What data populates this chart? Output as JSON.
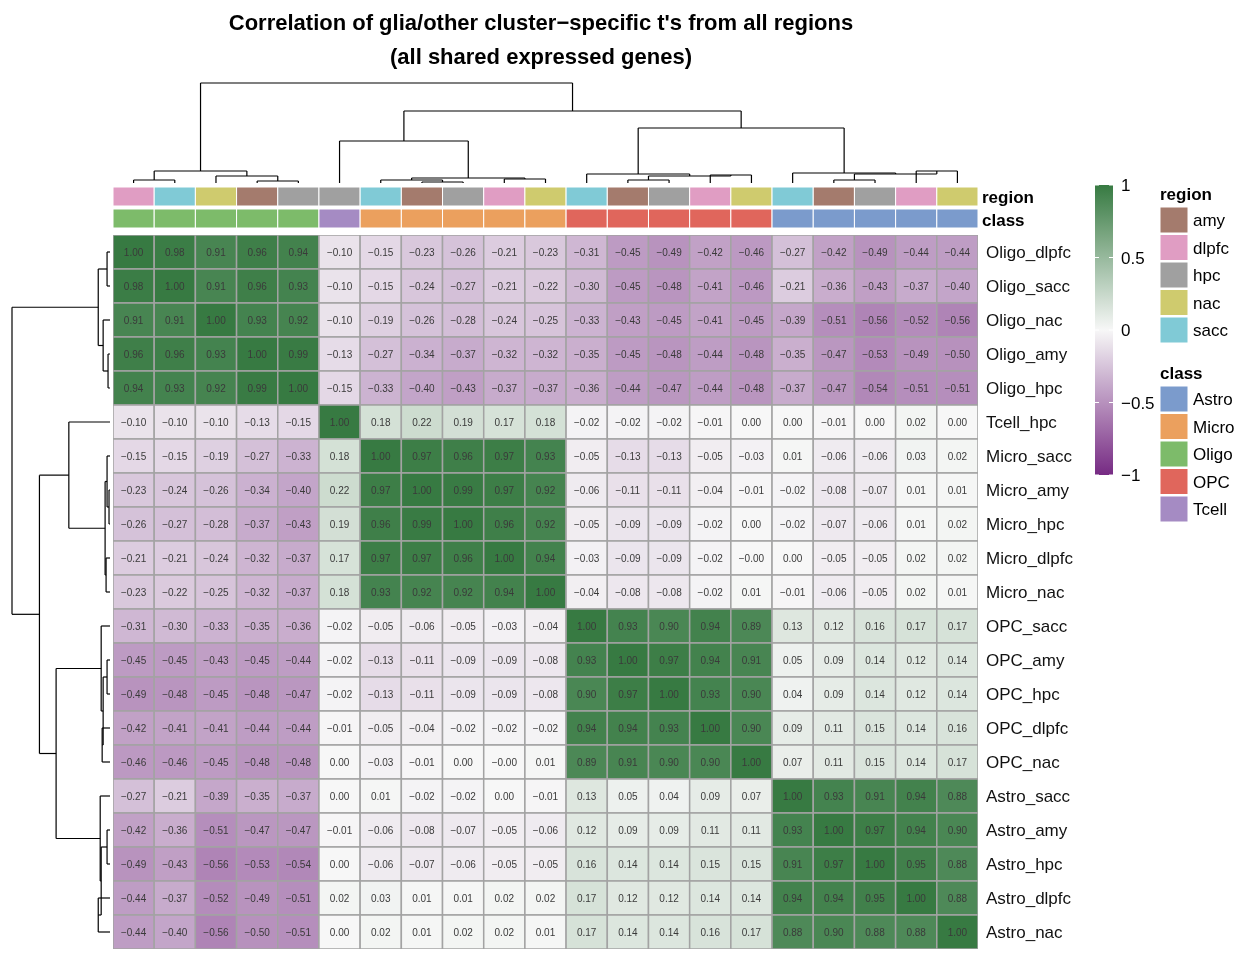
{
  "chart_data": {
    "type": "heatmap",
    "title": "Correlation of glia/other cluster−specific t's from all regions",
    "subtitle": "(all shared expressed genes)",
    "categories": [
      null,
      null,
      null,
      null,
      null,
      null,
      null,
      null,
      null,
      null,
      null,
      null,
      null,
      null,
      null,
      null,
      null,
      null,
      null,
      null,
      null
    ],
    "y_categories": [
      "Oligo_dlpfc",
      "Oligo_sacc",
      "Oligo_nac",
      "Oligo_amy",
      "Oligo_hpc",
      "Tcell_hpc",
      "Micro_sacc",
      "Micro_amy",
      "Micro_hpc",
      "Micro_dlpfc",
      "Micro_nac",
      "OPC_sacc",
      "OPC_amy",
      "OPC_hpc",
      "OPC_dlpfc",
      "OPC_nac",
      "Astro_sacc",
      "Astro_amy",
      "Astro_hpc",
      "Astro_dlpfc",
      "Astro_nac"
    ],
    "annotations": [
      "region",
      "amy",
      "dlpfc",
      "hpc",
      "nac",
      "sacc",
      "class",
      "Astro",
      "Micro",
      "Oligo",
      "OPC",
      "Tcell"
    ],
    "clim": [
      -1,
      1
    ],
    "cticks": [
      1,
      0.5,
      0,
      {
        "value": -0.5,
        "label": "−0.5"
      },
      {
        "value": -1,
        "label": "−1"
      }
    ],
    "cells": [
      [
        1.0,
        0.98,
        0.91,
        0.96,
        0.94,
        -0.1,
        -0.15,
        -0.23,
        -0.26,
        -0.21,
        -0.23,
        -0.31,
        -0.45,
        -0.49,
        -0.42,
        -0.46,
        -0.27,
        -0.42,
        -0.49,
        -0.44,
        -0.44
      ],
      [
        0.98,
        1.0,
        0.91,
        0.96,
        0.93,
        -0.1,
        -0.15,
        -0.24,
        -0.27,
        -0.21,
        -0.22,
        -0.3,
        -0.45,
        -0.48,
        -0.41,
        -0.46,
        -0.21,
        -0.36,
        -0.43,
        -0.37,
        -0.4
      ],
      [
        0.91,
        0.91,
        1.0,
        0.93,
        0.92,
        -0.1,
        -0.19,
        -0.26,
        -0.28,
        -0.24,
        -0.25,
        -0.33,
        -0.43,
        -0.45,
        -0.41,
        -0.45,
        -0.39,
        -0.51,
        -0.56,
        -0.52,
        -0.56
      ],
      [
        0.96,
        0.96,
        0.93,
        1.0,
        0.99,
        -0.13,
        -0.27,
        -0.34,
        -0.37,
        -0.32,
        -0.32,
        -0.35,
        -0.45,
        -0.48,
        -0.44,
        -0.48,
        -0.35,
        -0.47,
        -0.53,
        -0.49,
        -0.5
      ],
      [
        0.94,
        0.93,
        0.92,
        0.99,
        1.0,
        -0.15,
        -0.33,
        -0.4,
        -0.43,
        -0.37,
        -0.37,
        -0.36,
        -0.44,
        -0.47,
        -0.44,
        -0.48,
        -0.37,
        -0.47,
        -0.54,
        -0.51,
        -0.51
      ],
      [
        -0.1,
        -0.1,
        -0.1,
        -0.13,
        -0.15,
        1.0,
        0.18,
        0.22,
        0.19,
        0.17,
        0.18,
        -0.02,
        -0.02,
        -0.02,
        -0.01,
        0.0,
        0.0,
        -0.01,
        0.0,
        0.02,
        0.0
      ],
      [
        -0.15,
        -0.15,
        -0.19,
        -0.27,
        -0.33,
        0.18,
        1.0,
        0.97,
        0.96,
        0.97,
        0.93,
        -0.05,
        -0.13,
        -0.13,
        -0.05,
        -0.03,
        0.01,
        -0.06,
        -0.06,
        0.03,
        0.02
      ],
      [
        -0.23,
        -0.24,
        -0.26,
        -0.34,
        -0.4,
        0.22,
        0.97,
        1.0,
        0.99,
        0.97,
        0.92,
        -0.06,
        -0.11,
        -0.11,
        -0.04,
        -0.01,
        -0.02,
        -0.08,
        -0.07,
        0.01,
        0.01
      ],
      [
        -0.26,
        -0.27,
        -0.28,
        -0.37,
        -0.43,
        0.19,
        0.96,
        0.99,
        1.0,
        0.96,
        0.92,
        -0.05,
        -0.09,
        -0.09,
        -0.02,
        0.0,
        -0.02,
        -0.07,
        -0.06,
        0.01,
        0.02
      ],
      [
        -0.21,
        -0.21,
        -0.24,
        -0.32,
        -0.37,
        0.17,
        0.97,
        0.97,
        0.96,
        1.0,
        0.94,
        -0.03,
        -0.09,
        -0.09,
        -0.02,
        0.0,
        0.0,
        -0.05,
        -0.05,
        0.02,
        0.02
      ],
      [
        -0.23,
        -0.22,
        -0.25,
        -0.32,
        -0.37,
        0.18,
        0.93,
        0.92,
        0.92,
        0.94,
        1.0,
        -0.04,
        -0.08,
        -0.08,
        -0.02,
        0.01,
        -0.01,
        -0.06,
        -0.05,
        0.02,
        0.01
      ],
      [
        -0.31,
        -0.3,
        -0.33,
        -0.35,
        -0.36,
        -0.02,
        -0.05,
        -0.06,
        -0.05,
        -0.03,
        -0.04,
        1.0,
        0.93,
        0.9,
        0.94,
        0.89,
        0.13,
        0.12,
        0.16,
        0.17,
        0.17
      ],
      [
        -0.45,
        -0.45,
        -0.43,
        -0.45,
        -0.44,
        -0.02,
        -0.13,
        -0.11,
        -0.09,
        -0.09,
        -0.08,
        0.93,
        1.0,
        0.97,
        0.94,
        0.91,
        0.05,
        0.09,
        0.14,
        0.12,
        0.14
      ],
      [
        -0.49,
        -0.48,
        -0.45,
        -0.48,
        -0.47,
        -0.02,
        -0.13,
        -0.11,
        -0.09,
        -0.09,
        -0.08,
        0.9,
        0.97,
        1.0,
        0.93,
        0.9,
        0.04,
        0.09,
        0.14,
        0.12,
        0.14
      ],
      [
        -0.42,
        -0.41,
        -0.41,
        -0.44,
        -0.44,
        -0.01,
        -0.05,
        -0.04,
        -0.02,
        -0.02,
        -0.02,
        0.94,
        0.94,
        0.93,
        1.0,
        0.9,
        0.09,
        0.11,
        0.15,
        0.14,
        0.16
      ],
      [
        -0.46,
        -0.46,
        -0.45,
        -0.48,
        -0.48,
        0.0,
        -0.03,
        -0.01,
        0.0,
        0.0,
        0.01,
        0.89,
        0.91,
        0.9,
        0.9,
        1.0,
        0.07,
        0.11,
        0.15,
        0.14,
        0.17
      ],
      [
        -0.27,
        -0.21,
        -0.39,
        -0.35,
        -0.37,
        0.0,
        0.01,
        -0.02,
        -0.02,
        0.0,
        -0.01,
        0.13,
        0.05,
        0.04,
        0.09,
        0.07,
        1.0,
        0.93,
        0.91,
        0.94,
        0.88
      ],
      [
        -0.42,
        -0.36,
        -0.51,
        -0.47,
        -0.47,
        -0.01,
        -0.06,
        -0.08,
        -0.07,
        -0.05,
        -0.06,
        0.12,
        0.09,
        0.09,
        0.11,
        0.11,
        0.93,
        1.0,
        0.97,
        0.94,
        0.9
      ],
      [
        -0.49,
        -0.43,
        -0.56,
        -0.53,
        -0.54,
        0.0,
        -0.06,
        -0.07,
        -0.06,
        -0.05,
        -0.05,
        0.16,
        0.14,
        0.14,
        0.15,
        0.15,
        0.91,
        0.97,
        1.0,
        0.95,
        0.88
      ],
      [
        -0.44,
        -0.37,
        -0.52,
        -0.49,
        -0.51,
        0.02,
        0.03,
        0.01,
        0.01,
        0.02,
        0.02,
        0.17,
        0.12,
        0.12,
        0.14,
        0.14,
        0.94,
        0.94,
        0.95,
        1.0,
        0.88
      ],
      [
        -0.44,
        -0.4,
        -0.56,
        -0.5,
        -0.51,
        0.0,
        0.02,
        0.01,
        0.02,
        0.02,
        0.01,
        0.17,
        0.14,
        0.14,
        0.16,
        0.17,
        0.88,
        0.9,
        0.88,
        0.88,
        1.0
      ]
    ],
    "cell_labels": [
      [
        "1.00",
        "0.98",
        "0.91",
        "0.96",
        "0.94",
        "−0.10",
        "−0.15",
        "−0.23",
        "−0.26",
        "−0.21",
        "−0.23",
        "−0.31",
        "−0.45",
        "−0.49",
        "−0.42",
        "−0.46",
        "−0.27",
        "−0.42",
        "−0.49",
        "−0.44",
        "−0.44"
      ],
      [
        "0.98",
        "1.00",
        "0.91",
        "0.96",
        "0.93",
        "−0.10",
        "−0.15",
        "−0.24",
        "−0.27",
        "−0.21",
        "−0.22",
        "−0.30",
        "−0.45",
        "−0.48",
        "−0.41",
        "−0.46",
        "−0.21",
        "−0.36",
        "−0.43",
        "−0.37",
        "−0.40"
      ],
      [
        "0.91",
        "0.91",
        "1.00",
        "0.93",
        "0.92",
        "−0.10",
        "−0.19",
        "−0.26",
        "−0.28",
        "−0.24",
        "−0.25",
        "−0.33",
        "−0.43",
        "−0.45",
        "−0.41",
        "−0.45",
        "−0.39",
        "−0.51",
        "−0.56",
        "−0.52",
        "−0.56"
      ],
      [
        "0.96",
        "0.96",
        "0.93",
        "1.00",
        "0.99",
        "−0.13",
        "−0.27",
        "−0.34",
        "−0.37",
        "−0.32",
        "−0.32",
        "−0.35",
        "−0.45",
        "−0.48",
        "−0.44",
        "−0.48",
        "−0.35",
        "−0.47",
        "−0.53",
        "−0.49",
        "−0.50"
      ],
      [
        "0.94",
        "0.93",
        "0.92",
        "0.99",
        "1.00",
        "−0.15",
        "−0.33",
        "−0.40",
        "−0.43",
        "−0.37",
        "−0.37",
        "−0.36",
        "−0.44",
        "−0.47",
        "−0.44",
        "−0.48",
        "−0.37",
        "−0.47",
        "−0.54",
        "−0.51",
        "−0.51"
      ],
      [
        "−0.10",
        "−0.10",
        "−0.10",
        "−0.13",
        "−0.15",
        "1.00",
        "0.18",
        "0.22",
        "0.19",
        "0.17",
        "0.18",
        "−0.02",
        "−0.02",
        "−0.02",
        "−0.01",
        "0.00",
        "0.00",
        "−0.01",
        "0.00",
        "0.02",
        "0.00"
      ],
      [
        "−0.15",
        "−0.15",
        "−0.19",
        "−0.27",
        "−0.33",
        "0.18",
        "1.00",
        "0.97",
        "0.96",
        "0.97",
        "0.93",
        "−0.05",
        "−0.13",
        "−0.13",
        "−0.05",
        "−0.03",
        "0.01",
        "−0.06",
        "−0.06",
        "0.03",
        "0.02"
      ],
      [
        "−0.23",
        "−0.24",
        "−0.26",
        "−0.34",
        "−0.40",
        "0.22",
        "0.97",
        "1.00",
        "0.99",
        "0.97",
        "0.92",
        "−0.06",
        "−0.11",
        "−0.11",
        "−0.04",
        "−0.01",
        "−0.02",
        "−0.08",
        "−0.07",
        "0.01",
        "0.01"
      ],
      [
        "−0.26",
        "−0.27",
        "−0.28",
        "−0.37",
        "−0.43",
        "0.19",
        "0.96",
        "0.99",
        "1.00",
        "0.96",
        "0.92",
        "−0.05",
        "−0.09",
        "−0.09",
        "−0.02",
        "0.00",
        "−0.02",
        "−0.07",
        "−0.06",
        "0.01",
        "0.02"
      ],
      [
        "−0.21",
        "−0.21",
        "−0.24",
        "−0.32",
        "−0.37",
        "0.17",
        "0.97",
        "0.97",
        "0.96",
        "1.00",
        "0.94",
        "−0.03",
        "−0.09",
        "−0.09",
        "−0.02",
        "−0.00",
        "0.00",
        "−0.05",
        "−0.05",
        "0.02",
        "0.02"
      ],
      [
        "−0.23",
        "−0.22",
        "−0.25",
        "−0.32",
        "−0.37",
        "0.18",
        "0.93",
        "0.92",
        "0.92",
        "0.94",
        "1.00",
        "−0.04",
        "−0.08",
        "−0.08",
        "−0.02",
        "0.01",
        "−0.01",
        "−0.06",
        "−0.05",
        "0.02",
        "0.01"
      ],
      [
        "−0.31",
        "−0.30",
        "−0.33",
        "−0.35",
        "−0.36",
        "−0.02",
        "−0.05",
        "−0.06",
        "−0.05",
        "−0.03",
        "−0.04",
        "1.00",
        "0.93",
        "0.90",
        "0.94",
        "0.89",
        "0.13",
        "0.12",
        "0.16",
        "0.17",
        "0.17"
      ],
      [
        "−0.45",
        "−0.45",
        "−0.43",
        "−0.45",
        "−0.44",
        "−0.02",
        "−0.13",
        "−0.11",
        "−0.09",
        "−0.09",
        "−0.08",
        "0.93",
        "1.00",
        "0.97",
        "0.94",
        "0.91",
        "0.05",
        "0.09",
        "0.14",
        "0.12",
        "0.14"
      ],
      [
        "−0.49",
        "−0.48",
        "−0.45",
        "−0.48",
        "−0.47",
        "−0.02",
        "−0.13",
        "−0.11",
        "−0.09",
        "−0.09",
        "−0.08",
        "0.90",
        "0.97",
        "1.00",
        "0.93",
        "0.90",
        "0.04",
        "0.09",
        "0.14",
        "0.12",
        "0.14"
      ],
      [
        "−0.42",
        "−0.41",
        "−0.41",
        "−0.44",
        "−0.44",
        "−0.01",
        "−0.05",
        "−0.04",
        "−0.02",
        "−0.02",
        "−0.02",
        "0.94",
        "0.94",
        "0.93",
        "1.00",
        "0.90",
        "0.09",
        "0.11",
        "0.15",
        "0.14",
        "0.16"
      ],
      [
        "−0.46",
        "−0.46",
        "−0.45",
        "−0.48",
        "−0.48",
        "0.00",
        "−0.03",
        "−0.01",
        "0.00",
        "−0.00",
        "0.01",
        "0.89",
        "0.91",
        "0.90",
        "0.90",
        "1.00",
        "0.07",
        "0.11",
        "0.15",
        "0.14",
        "0.17"
      ],
      [
        "−0.27",
        "−0.21",
        "−0.39",
        "−0.35",
        "−0.37",
        "0.00",
        "0.01",
        "−0.02",
        "−0.02",
        "0.00",
        "−0.01",
        "0.13",
        "0.05",
        "0.04",
        "0.09",
        "0.07",
        "1.00",
        "0.93",
        "0.91",
        "0.94",
        "0.88"
      ],
      [
        "−0.42",
        "−0.36",
        "−0.51",
        "−0.47",
        "−0.47",
        "−0.01",
        "−0.06",
        "−0.08",
        "−0.07",
        "−0.05",
        "−0.06",
        "0.12",
        "0.09",
        "0.09",
        "0.11",
        "0.11",
        "0.93",
        "1.00",
        "0.97",
        "0.94",
        "0.90"
      ],
      [
        "−0.49",
        "−0.43",
        "−0.56",
        "−0.53",
        "−0.54",
        "0.00",
        "−0.06",
        "−0.07",
        "−0.06",
        "−0.05",
        "−0.05",
        "0.16",
        "0.14",
        "0.14",
        "0.15",
        "0.15",
        "0.91",
        "0.97",
        "1.00",
        "0.95",
        "0.88"
      ],
      [
        "−0.44",
        "−0.37",
        "−0.52",
        "−0.49",
        "−0.51",
        "0.02",
        "0.03",
        "0.01",
        "0.01",
        "0.02",
        "0.02",
        "0.17",
        "0.12",
        "0.12",
        "0.14",
        "0.14",
        "0.94",
        "0.94",
        "0.95",
        "1.00",
        "0.88"
      ],
      [
        "−0.44",
        "−0.40",
        "−0.56",
        "−0.50",
        "−0.51",
        "0.00",
        "0.02",
        "0.01",
        "0.02",
        "0.02",
        "0.01",
        "0.17",
        "0.14",
        "0.14",
        "0.16",
        "0.17",
        "0.88",
        "0.90",
        "0.88",
        "0.88",
        "1.00"
      ]
    ]
  }
}
